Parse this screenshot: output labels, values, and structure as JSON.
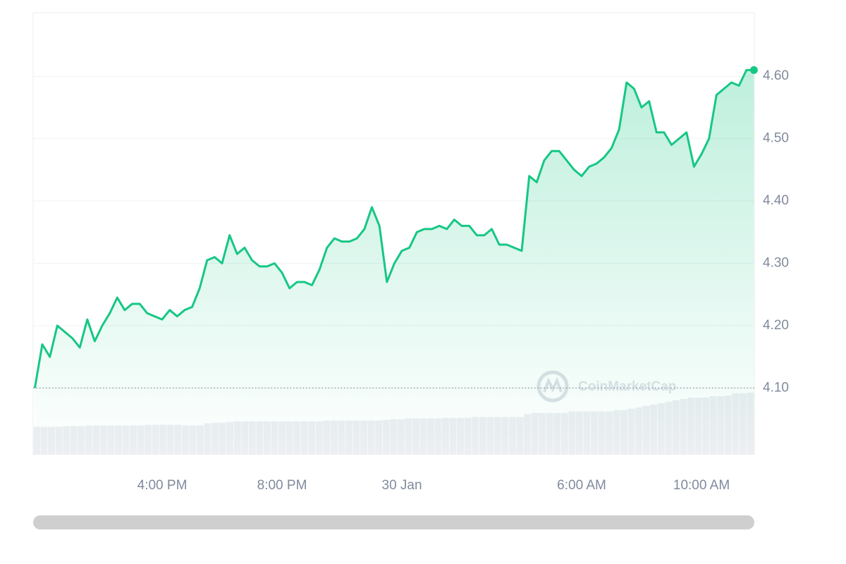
{
  "chart_data": {
    "type": "line",
    "categories": [
      null,
      null,
      null,
      null,
      null,
      null,
      null,
      null,
      null,
      null,
      null,
      null,
      null,
      null,
      null,
      null,
      null,
      "4:00 PM",
      null,
      null,
      null,
      null,
      null,
      null,
      null,
      null,
      null,
      null,
      null,
      null,
      null,
      null,
      null,
      "8:00 PM",
      null,
      null,
      null,
      null,
      null,
      null,
      null,
      null,
      null,
      null,
      null,
      null,
      null,
      null,
      null,
      "30 Jan",
      null,
      null,
      null,
      null,
      null,
      null,
      null,
      null,
      null,
      null,
      null,
      null,
      null,
      null,
      null,
      null,
      null,
      null,
      null,
      null,
      null,
      null,
      null,
      "6:00 AM",
      null,
      null,
      null,
      null,
      null,
      null,
      null,
      null,
      null,
      null,
      null,
      null,
      null,
      null,
      null,
      "10:00 AM",
      null,
      null,
      null,
      null,
      null,
      null,
      null
    ],
    "series": [
      {
        "color": "#16c784",
        "values": [
          4.1,
          4.17,
          4.15,
          4.2,
          4.19,
          4.18,
          4.165,
          4.21,
          4.175,
          4.2,
          4.22,
          4.245,
          4.225,
          4.235,
          4.235,
          4.22,
          4.215,
          4.21,
          4.225,
          4.215,
          4.225,
          4.23,
          4.26,
          4.305,
          4.31,
          4.3,
          4.345,
          4.315,
          4.325,
          4.305,
          4.295,
          4.295,
          4.3,
          4.285,
          4.26,
          4.27,
          4.27,
          4.265,
          4.29,
          4.325,
          4.34,
          4.335,
          4.335,
          4.34,
          4.355,
          4.39,
          4.36,
          4.27,
          4.3,
          4.32,
          4.325,
          4.35,
          4.355,
          4.355,
          4.36,
          4.355,
          4.37,
          4.36,
          4.36,
          4.345,
          4.345,
          4.355,
          4.33,
          4.33,
          4.325,
          4.32,
          4.44,
          4.43,
          4.465,
          4.48,
          4.48,
          4.465,
          4.45,
          4.44,
          4.455,
          4.46,
          4.47,
          4.485,
          4.515,
          4.59,
          4.58,
          4.55,
          4.56,
          4.51,
          4.51,
          4.49,
          4.5,
          4.51,
          4.455,
          4.475,
          4.5,
          4.57,
          4.58,
          4.59,
          4.585,
          4.61,
          4.61
        ]
      }
    ],
    "volume": [
      40,
      40,
      40,
      40,
      41,
      41,
      41,
      42,
      42,
      42,
      42,
      42,
      42,
      42,
      42,
      43,
      43,
      43,
      43,
      43,
      42,
      42,
      42,
      45,
      46,
      46,
      47,
      48,
      48,
      48,
      48,
      48,
      48,
      48,
      48,
      48,
      48,
      48,
      48,
      49,
      49,
      49,
      49,
      49,
      49,
      49,
      49,
      50,
      51,
      51,
      52,
      52,
      52,
      52,
      52,
      53,
      53,
      53,
      53,
      54,
      54,
      54,
      54,
      54,
      54,
      54,
      58,
      60,
      60,
      60,
      60,
      60,
      62,
      62,
      62,
      62,
      62,
      62,
      64,
      64,
      66,
      68,
      70,
      72,
      74,
      76,
      78,
      80,
      82,
      82,
      82,
      84,
      84,
      85,
      88,
      88,
      89
    ],
    "volume_color": "#eceef2",
    "ylim": [
      3.993,
      4.702
    ],
    "yticks": [
      {
        "value": 4.1,
        "label": "4.10"
      },
      {
        "value": 4.2,
        "label": "4.20"
      },
      {
        "value": 4.3,
        "label": "4.30"
      },
      {
        "value": 4.4,
        "label": "4.40"
      },
      {
        "value": 4.5,
        "label": "4.50"
      },
      {
        "value": 4.6,
        "label": "4.60"
      }
    ],
    "grid": true,
    "watermark": "CoinMarketCap"
  }
}
